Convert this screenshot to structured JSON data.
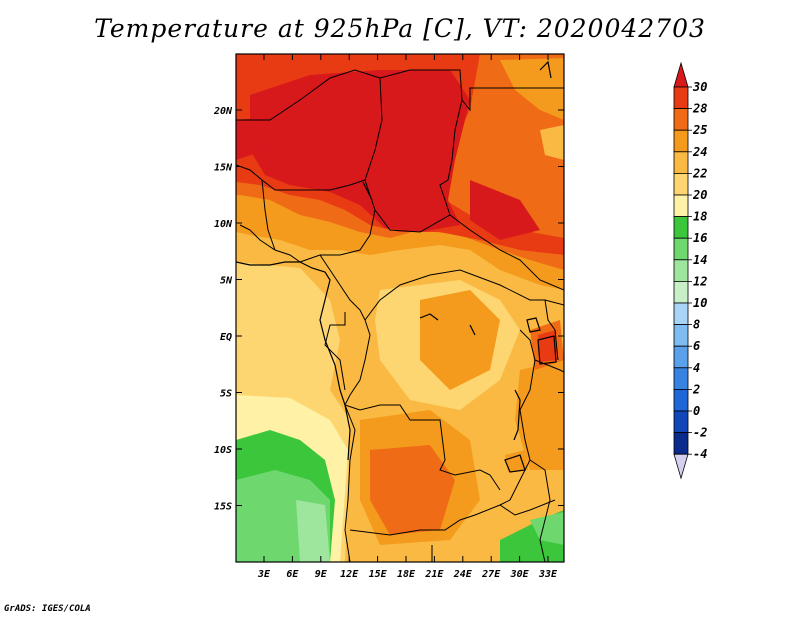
{
  "title": "Temperature at 925hPa [C], VT: 2020042703",
  "footer": "GrADS: IGES/COLA",
  "map": {
    "lat_labels": [
      "20N",
      "15N",
      "10N",
      "5N",
      "EQ",
      "5S",
      "10S",
      "15S"
    ],
    "lon_labels": [
      "3E",
      "6E",
      "9E",
      "12E",
      "15E",
      "18E",
      "21E",
      "24E",
      "27E",
      "30E",
      "33E"
    ]
  },
  "colorbar": {
    "levels": [
      "30",
      "28",
      "25",
      "24",
      "22",
      "20",
      "18",
      "16",
      "14",
      "12",
      "10",
      "8",
      "6",
      "4",
      "2",
      "0",
      "-2",
      "-4"
    ],
    "colors": [
      "#d7191c",
      "#e83a13",
      "#f06b16",
      "#f49a1c",
      "#f9b942",
      "#fdd672",
      "#fff2a6",
      "#3cc63c",
      "#6ed86e",
      "#9ee59e",
      "#c8f0c8",
      "#a8d4f8",
      "#7fbcf2",
      "#5aa0ea",
      "#3883e2",
      "#1f66d6",
      "#1147b8",
      "#0a2a8c",
      "#0a0a64",
      "#d6d0f0"
    ]
  }
}
